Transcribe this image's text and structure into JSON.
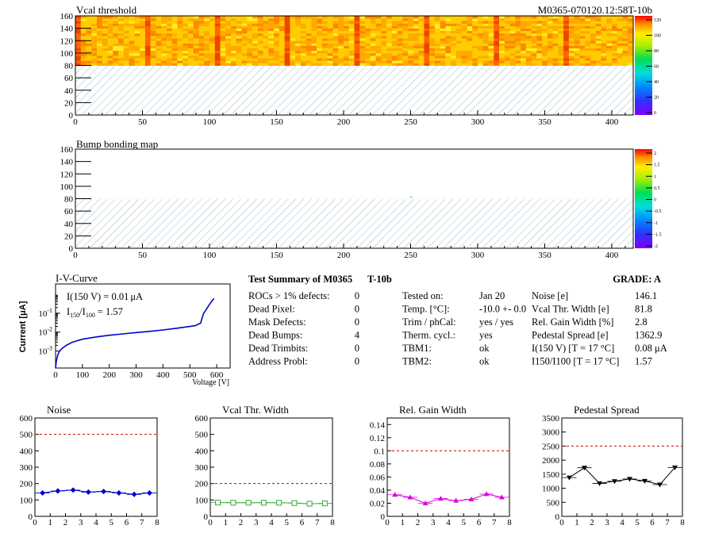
{
  "header": {
    "id_label": "M0365-070120.12:58T-10b"
  },
  "colors": {
    "axis": "#000000",
    "hatch": "#8fb3c6",
    "noise": "#0000cc",
    "vcal": "#33aa33",
    "gain": "#dd00dd",
    "ped": "#000000",
    "limit": "#cc0000"
  },
  "chart_data": [
    {
      "type": "heatmap",
      "title": "Vcal threshold",
      "x_ticks": [
        0,
        50,
        100,
        150,
        200,
        250,
        300,
        350,
        400
      ],
      "y_ticks": [
        0,
        20,
        40,
        60,
        80,
        100,
        120,
        140,
        160
      ],
      "xlim": [
        0,
        416
      ],
      "ylim": [
        0,
        160
      ],
      "filled_rows": [
        80,
        160
      ],
      "colorbar": {
        "ticks": [
          "120",
          "100",
          "80",
          "60",
          "40",
          "20",
          "0"
        ],
        "range": [
          0,
          130
        ]
      }
    },
    {
      "type": "heatmap",
      "title": "Bump bonding map",
      "x_ticks": [
        0,
        50,
        100,
        150,
        200,
        250,
        300,
        350,
        400
      ],
      "y_ticks": [
        0,
        20,
        40,
        60,
        80,
        100,
        120,
        140,
        160
      ],
      "xlim": [
        0,
        416
      ],
      "ylim": [
        0,
        160
      ],
      "colorbar": {
        "ticks": [
          "2",
          "1.5",
          "1",
          "0.5",
          "0",
          "-0.5",
          "-1",
          "-1.5",
          "-2"
        ],
        "range": [
          -2,
          2
        ]
      }
    },
    {
      "type": "line",
      "title": "I-V-Curve",
      "xlabel": "Voltage [V]",
      "ylabel": "Current [μA]",
      "x_ticks": [
        0,
        100,
        200,
        300,
        400,
        500,
        600
      ],
      "xlim": [
        0,
        650
      ],
      "ylim_log10": [
        -3.9,
        0.55
      ],
      "points": [
        [
          0,
          0.00012
        ],
        [
          3,
          0.0003
        ],
        [
          8,
          0.0006
        ],
        [
          15,
          0.001
        ],
        [
          25,
          0.0014
        ],
        [
          40,
          0.002
        ],
        [
          60,
          0.0028
        ],
        [
          80,
          0.0035
        ],
        [
          100,
          0.0042
        ],
        [
          130,
          0.005
        ],
        [
          160,
          0.0058
        ],
        [
          200,
          0.0068
        ],
        [
          250,
          0.008
        ],
        [
          300,
          0.0095
        ],
        [
          350,
          0.011
        ],
        [
          400,
          0.013
        ],
        [
          450,
          0.016
        ],
        [
          500,
          0.02
        ],
        [
          520,
          0.022
        ],
        [
          540,
          0.03
        ],
        [
          550,
          0.09
        ],
        [
          560,
          0.15
        ],
        [
          570,
          0.25
        ],
        [
          580,
          0.4
        ],
        [
          590,
          0.6
        ]
      ],
      "annotations": [
        {
          "name": "I(150 V) = 0.01",
          "unit": "μA"
        },
        {
          "name": "I",
          "sub1": "150",
          "mid": "/I",
          "sub2": "100",
          "value": "=  1.57"
        }
      ]
    },
    {
      "type": "line",
      "title": "Noise",
      "x": [
        0.5,
        1.5,
        2.5,
        3.5,
        4.5,
        5.5,
        6.5,
        7.5
      ],
      "values": [
        143,
        155,
        160,
        148,
        152,
        143,
        134,
        143
      ],
      "limit": 500,
      "xlim": [
        0,
        8
      ],
      "ylim": [
        0,
        600
      ],
      "x_ticks": [
        0,
        1,
        2,
        3,
        4,
        5,
        6,
        7,
        8
      ],
      "y_ticks": [
        0,
        100,
        200,
        300,
        400,
        500,
        600
      ]
    },
    {
      "type": "line",
      "title": "Vcal Thr. Width",
      "x": [
        0.5,
        1.5,
        2.5,
        3.5,
        4.5,
        5.5,
        6.5,
        7.5
      ],
      "values": [
        84,
        83,
        83,
        83,
        83,
        81,
        77,
        79
      ],
      "limit": 200,
      "xlim": [
        0,
        8
      ],
      "ylim": [
        0,
        600
      ],
      "x_ticks": [
        0,
        1,
        2,
        3,
        4,
        5,
        6,
        7,
        8
      ],
      "y_ticks": [
        0,
        100,
        200,
        300,
        400,
        500,
        600
      ]
    },
    {
      "type": "line",
      "title": "Rel. Gain Width",
      "x": [
        0.5,
        1.5,
        2.5,
        3.5,
        4.5,
        5.5,
        6.5,
        7.5
      ],
      "values": [
        0.033,
        0.029,
        0.02,
        0.027,
        0.024,
        0.026,
        0.034,
        0.029
      ],
      "limit": 0.1,
      "xlim": [
        0,
        8
      ],
      "ylim": [
        0,
        0.15
      ],
      "x_ticks": [
        0,
        1,
        2,
        3,
        4,
        5,
        6,
        7,
        8
      ],
      "y_ticks": [
        0,
        0.02,
        0.04,
        0.06,
        0.08,
        0.1,
        0.12,
        0.14
      ]
    },
    {
      "type": "line",
      "title": "Pedestal Spread",
      "x": [
        0.5,
        1.5,
        2.5,
        3.5,
        4.5,
        5.5,
        6.5,
        7.5
      ],
      "values": [
        1380,
        1730,
        1170,
        1250,
        1330,
        1260,
        1130,
        1740
      ],
      "limit": 2500,
      "xlim": [
        0,
        8
      ],
      "ylim": [
        0,
        3500
      ],
      "x_ticks": [
        0,
        1,
        2,
        3,
        4,
        5,
        6,
        7,
        8
      ],
      "y_ticks": [
        0,
        500,
        1000,
        1500,
        2000,
        2500,
        3000,
        3500
      ]
    }
  ],
  "summary": {
    "title": "Test Summary of M0365",
    "test_id": "T-10b",
    "grade_label": "GRADE:  A",
    "defects": [
      {
        "label": "ROCs > 1% defects:",
        "value": "0"
      },
      {
        "label": "Dead Pixel:",
        "value": "0"
      },
      {
        "label": "Mask Defects:",
        "value": "0"
      },
      {
        "label": "Dead Bumps:",
        "value": "4"
      },
      {
        "label": "Dead Trimbits:",
        "value": "0"
      },
      {
        "label": "Address Probl:",
        "value": "0"
      }
    ],
    "conditions": [
      {
        "label": "Tested on:",
        "value": "Jan 20"
      },
      {
        "label": "Temp. [°C]:",
        "value": "-10.0 +- 0.0"
      },
      {
        "label": "Trim / phCal:",
        "value": "yes / yes"
      },
      {
        "label": "Therm. cycl.:",
        "value": "yes"
      },
      {
        "label": "TBM1:",
        "value": "ok"
      },
      {
        "label": "TBM2:",
        "value": "ok"
      }
    ],
    "results": [
      {
        "label": "Noise [e]",
        "value": "146.1"
      },
      {
        "label": "Vcal Thr. Width [e]",
        "value": "81.8"
      },
      {
        "label": "Rel. Gain Width [%]",
        "value": "2.8"
      },
      {
        "label": "Pedestal Spread [e]",
        "value": "1362.9"
      },
      {
        "label": "I(150 V) [T = 17 °C]",
        "value": "0.08 μA"
      },
      {
        "label": "I150/I100 [T = 17 °C]",
        "value": "1.57"
      }
    ]
  }
}
